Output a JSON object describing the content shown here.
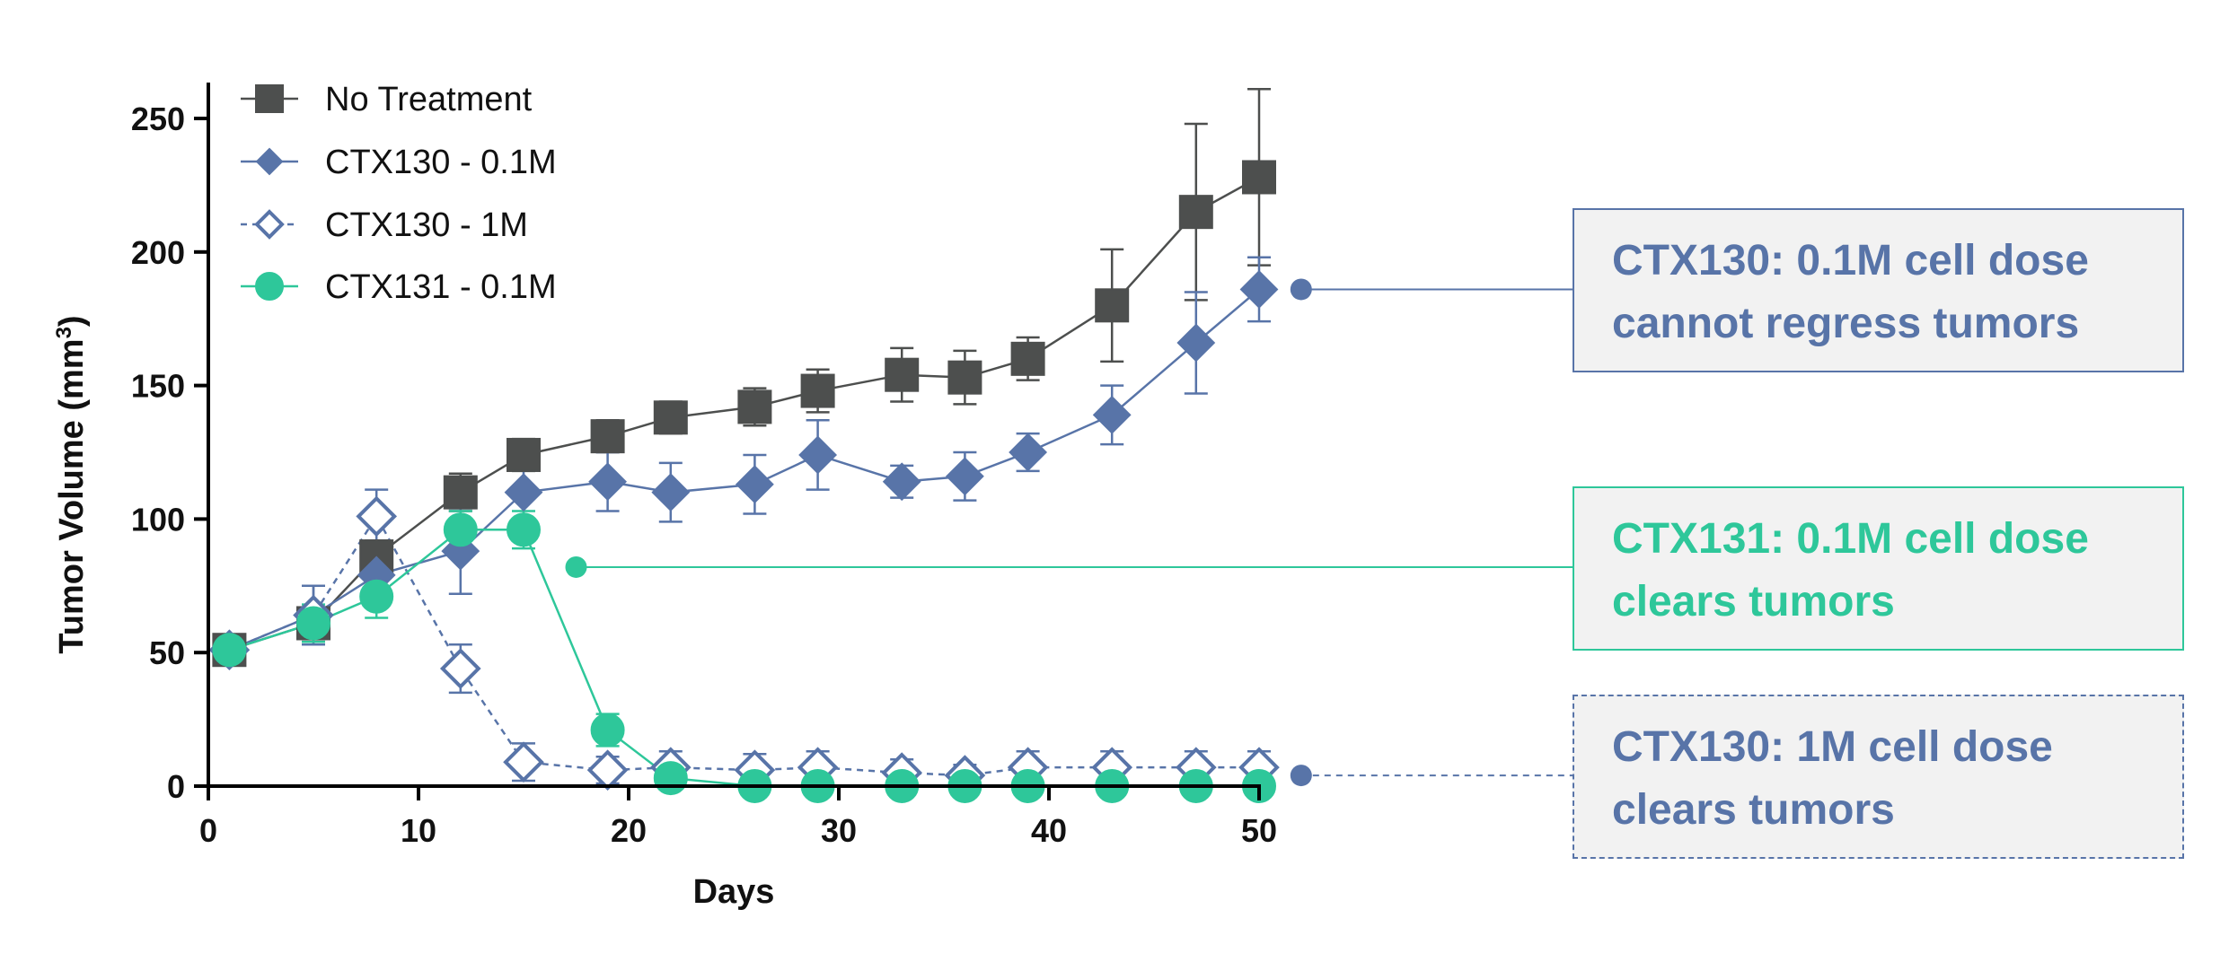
{
  "chart_data": {
    "type": "line",
    "title": "",
    "xlabel": "Days",
    "ylabel": "Tumor Volume (mm³)",
    "ylabel_main": "Tumor Volume (mm",
    "ylabel_sup": "3",
    "ylabel_end": ")",
    "xlim": [
      0,
      50
    ],
    "ylim": [
      0,
      250
    ],
    "xticks": [
      0,
      10,
      20,
      30,
      40,
      50
    ],
    "yticks": [
      0,
      50,
      100,
      150,
      200,
      250
    ],
    "legend_position": "top-left",
    "series": [
      {
        "name": "No Treatment",
        "color": "#4d4f4e",
        "marker": "square",
        "filled": true,
        "dashed": false,
        "x": [
          1,
          5,
          8,
          12,
          15,
          19,
          22,
          26,
          29,
          33,
          36,
          39,
          43,
          47,
          50
        ],
        "y": [
          51,
          61,
          86,
          110,
          124,
          131,
          138,
          142,
          148,
          154,
          153,
          160,
          180,
          215,
          228
        ],
        "err": [
          5,
          6,
          6,
          7,
          6,
          6,
          6,
          7,
          8,
          10,
          10,
          8,
          21,
          33,
          33
        ]
      },
      {
        "name": "CTX130 - 0.1M",
        "color": "#5874a8",
        "marker": "diamond",
        "filled": true,
        "dashed": false,
        "x": [
          1,
          5,
          8,
          12,
          15,
          19,
          22,
          26,
          29,
          33,
          36,
          39,
          43,
          47,
          50
        ],
        "y": [
          51,
          64,
          79,
          88,
          110,
          114,
          110,
          113,
          124,
          114,
          116,
          125,
          139,
          166,
          186
        ],
        "err": [
          5,
          11,
          8,
          16,
          10,
          11,
          11,
          11,
          13,
          6,
          9,
          7,
          11,
          19,
          12
        ]
      },
      {
        "name": "CTX130 - 1M",
        "color": "#5874a8",
        "marker": "diamond",
        "filled": false,
        "dashed": true,
        "x": [
          1,
          5,
          8,
          12,
          15,
          19,
          22,
          26,
          29,
          33,
          36,
          39,
          43,
          47,
          50
        ],
        "y": [
          51,
          64,
          101,
          44,
          9,
          6,
          7,
          6,
          7,
          5,
          4,
          7,
          7,
          7,
          7
        ],
        "err": [
          5,
          11,
          10,
          9,
          7,
          5,
          6,
          6,
          6,
          5,
          4,
          6,
          6,
          6,
          6
        ]
      },
      {
        "name": "CTX131 - 0.1M",
        "color": "#2ec79a",
        "marker": "circle",
        "filled": true,
        "dashed": false,
        "x": [
          1,
          5,
          8,
          12,
          15,
          19,
          22,
          26,
          29,
          33,
          36,
          39,
          43,
          47,
          50
        ],
        "y": [
          51,
          61,
          71,
          96,
          96,
          21,
          3,
          0,
          0,
          0,
          0,
          0,
          0,
          0,
          0
        ],
        "err": [
          5,
          7,
          8,
          7,
          7,
          6,
          2,
          1,
          1,
          1,
          1,
          1,
          1,
          1,
          1
        ]
      }
    ],
    "annotations": [
      {
        "id": "ann-ctx130-01m",
        "lines": [
          "CTX130: 0.1M cell dose",
          "cannot regress tumors"
        ],
        "text_color": "#5874a8",
        "border_color": "#5874a8",
        "border_style": "solid",
        "connector_color": "#5874a8",
        "connector_dashed": false,
        "anchor_day": 52,
        "anchor_value": 186
      },
      {
        "id": "ann-ctx131-01m",
        "lines": [
          "CTX131: 0.1M cell dose",
          "clears tumors"
        ],
        "text_color": "#2ec79a",
        "border_color": "#2ec79a",
        "border_style": "solid",
        "connector_color": "#2ec79a",
        "connector_dashed": false,
        "anchor_day": 17.5,
        "anchor_value": 82
      },
      {
        "id": "ann-ctx130-1m",
        "lines": [
          "CTX130: 1M cell dose",
          "clears tumors"
        ],
        "text_color": "#5874a8",
        "border_color": "#5874a8",
        "border_style": "dashed",
        "connector_color": "#5874a8",
        "connector_dashed": true,
        "anchor_day": 52,
        "anchor_value": 4
      }
    ]
  }
}
